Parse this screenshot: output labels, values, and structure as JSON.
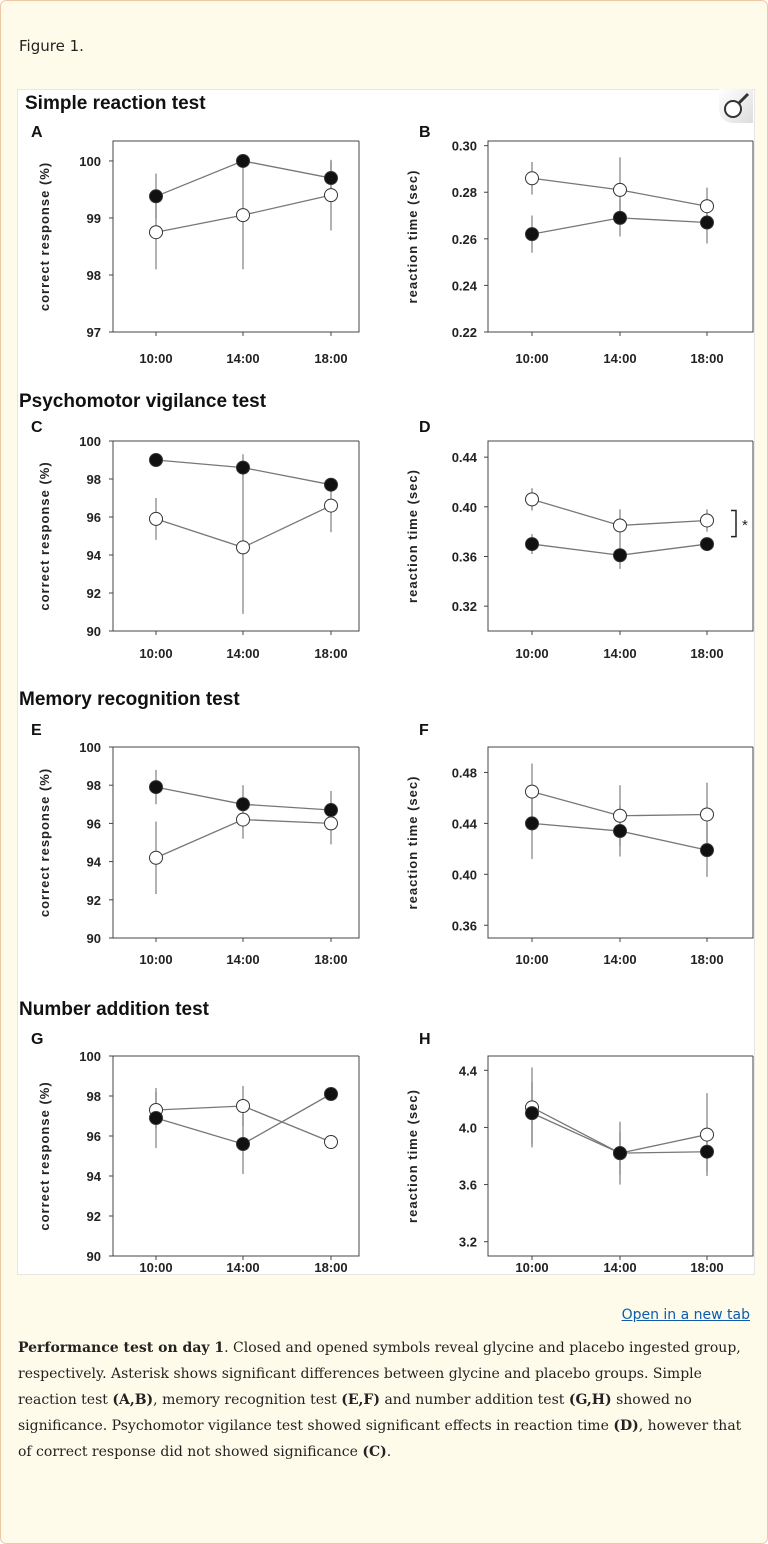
{
  "figure_label": "Figure 1.",
  "open_link": "Open in a new tab",
  "icons": {
    "magnifier": "magnifier-icon"
  },
  "caption": {
    "parts": [
      {
        "text": "Performance test on day 1",
        "bold": true
      },
      {
        "text": ". Closed and opened symbols reveal glycine and placebo ingested group, respectively. Asterisk shows significant differences between glycine and placebo groups. Simple reaction test ",
        "bold": false
      },
      {
        "text": "(A,B)",
        "bold": true
      },
      {
        "text": ", memory recognition test ",
        "bold": false
      },
      {
        "text": "(E,F)",
        "bold": true
      },
      {
        "text": " and number addition test ",
        "bold": false
      },
      {
        "text": "(G,H)",
        "bold": true
      },
      {
        "text": " showed no significance. Psychomotor vigilance test showed significant effects in reaction time ",
        "bold": false
      },
      {
        "text": "(D)",
        "bold": true
      },
      {
        "text": ", however that of correct response did not showed significance ",
        "bold": false
      },
      {
        "text": "(C)",
        "bold": true
      },
      {
        "text": ".",
        "bold": false
      }
    ]
  },
  "section_titles": [
    "Simple reaction test",
    "Psychomotor vigilance test",
    "Memory recognition test",
    "Number addition test"
  ],
  "chart_data": [
    {
      "panel": "A",
      "type": "line",
      "categories": [
        "10:00",
        "14:00",
        "18:00"
      ],
      "ylabel": "correct response (%)",
      "ylim": [
        97,
        100.35
      ],
      "yticks": [
        "97",
        "98",
        "99",
        "100"
      ],
      "series": [
        {
          "marker": "filled",
          "values": [
            99.38,
            100.0,
            99.7
          ],
          "error": [
            0.4,
            0,
            0.3
          ]
        },
        {
          "marker": "open",
          "values": [
            98.75,
            99.05,
            99.4
          ],
          "error": [
            0.65,
            0.95,
            0.62
          ]
        }
      ]
    },
    {
      "panel": "B",
      "type": "line",
      "categories": [
        "10:00",
        "14:00",
        "18:00"
      ],
      "ylabel": "reaction time (sec)",
      "ylim": [
        0.22,
        0.302
      ],
      "yticks": [
        "0.22",
        "0.24",
        "0.26",
        "0.28",
        "0.30"
      ],
      "series": [
        {
          "marker": "open",
          "values": [
            0.286,
            0.281,
            0.274
          ],
          "error": [
            0.007,
            0.014,
            0.008
          ]
        },
        {
          "marker": "filled",
          "values": [
            0.262,
            0.269,
            0.267
          ],
          "error": [
            0.008,
            0.008,
            0.009
          ]
        }
      ]
    },
    {
      "panel": "C",
      "type": "line",
      "categories": [
        "10:00",
        "14:00",
        "18:00"
      ],
      "ylabel": "correct response (%)",
      "ylim": [
        90,
        100
      ],
      "yticks": [
        "90",
        "92",
        "94",
        "96",
        "98",
        "100"
      ],
      "series": [
        {
          "marker": "filled",
          "values": [
            99.0,
            98.6,
            97.7
          ],
          "error": [
            0,
            0.7,
            0
          ]
        },
        {
          "marker": "open",
          "values": [
            95.9,
            94.4,
            96.6
          ],
          "error": [
            1.1,
            3.5,
            1.4
          ]
        }
      ]
    },
    {
      "panel": "D",
      "type": "line",
      "categories": [
        "10:00",
        "14:00",
        "18:00"
      ],
      "ylabel": "reaction time (sec)",
      "ylim": [
        0.3,
        0.453
      ],
      "yticks": [
        "0.32",
        "0.36",
        "0.40",
        "0.44"
      ],
      "annotation": "*",
      "series": [
        {
          "marker": "open",
          "values": [
            0.406,
            0.385,
            0.389
          ],
          "error": [
            0.009,
            0.013,
            0.009
          ]
        },
        {
          "marker": "filled",
          "values": [
            0.37,
            0.361,
            0.37
          ],
          "error": [
            0.008,
            0.011,
            0
          ]
        }
      ]
    },
    {
      "panel": "E",
      "type": "line",
      "categories": [
        "10:00",
        "14:00",
        "18:00"
      ],
      "ylabel": "correct response (%)",
      "ylim": [
        90,
        100
      ],
      "yticks": [
        "90",
        "92",
        "94",
        "96",
        "98",
        "100"
      ],
      "series": [
        {
          "marker": "filled",
          "values": [
            97.9,
            97.0,
            96.7
          ],
          "error": [
            0.9,
            1.0,
            1.0
          ]
        },
        {
          "marker": "open",
          "values": [
            94.2,
            96.2,
            96.0
          ],
          "error": [
            1.9,
            1.0,
            1.1
          ]
        }
      ]
    },
    {
      "panel": "F",
      "type": "line",
      "categories": [
        "10:00",
        "14:00",
        "18:00"
      ],
      "ylabel": "reaction time (sec)",
      "ylim": [
        0.35,
        0.5
      ],
      "yticks": [
        "0.36",
        "0.40",
        "0.44",
        "0.48"
      ],
      "series": [
        {
          "marker": "open",
          "values": [
            0.465,
            0.446,
            0.447
          ],
          "error": [
            0.022,
            0.024,
            0.025
          ]
        },
        {
          "marker": "filled",
          "values": [
            0.44,
            0.434,
            0.419
          ],
          "error": [
            0.028,
            0.02,
            0.021
          ]
        }
      ]
    },
    {
      "panel": "G",
      "type": "line",
      "categories": [
        "10:00",
        "14:00",
        "18:00"
      ],
      "ylabel": "correct response (%)",
      "ylim": [
        90,
        100
      ],
      "yticks": [
        "90",
        "92",
        "94",
        "96",
        "98",
        "100"
      ],
      "series": [
        {
          "marker": "open",
          "values": [
            97.3,
            97.5,
            95.7
          ],
          "error": [
            0.9,
            1.0,
            0
          ]
        },
        {
          "marker": "filled",
          "values": [
            96.9,
            95.6,
            98.1
          ],
          "error": [
            1.5,
            1.5,
            0
          ]
        }
      ]
    },
    {
      "panel": "H",
      "type": "line",
      "categories": [
        "10:00",
        "14:00",
        "18:00"
      ],
      "ylabel": "reaction time (sec)",
      "ylim": [
        3.1,
        4.5
      ],
      "yticks": [
        "3.2",
        "3.6",
        "4.0",
        "4.4"
      ],
      "series": [
        {
          "marker": "open",
          "values": [
            4.14,
            3.82,
            3.95
          ],
          "error": [
            0.28,
            0.22,
            0.29
          ]
        },
        {
          "marker": "filled",
          "values": [
            4.1,
            3.82,
            3.83
          ],
          "error": [
            0.22,
            0.15,
            0.14
          ]
        }
      ]
    }
  ]
}
